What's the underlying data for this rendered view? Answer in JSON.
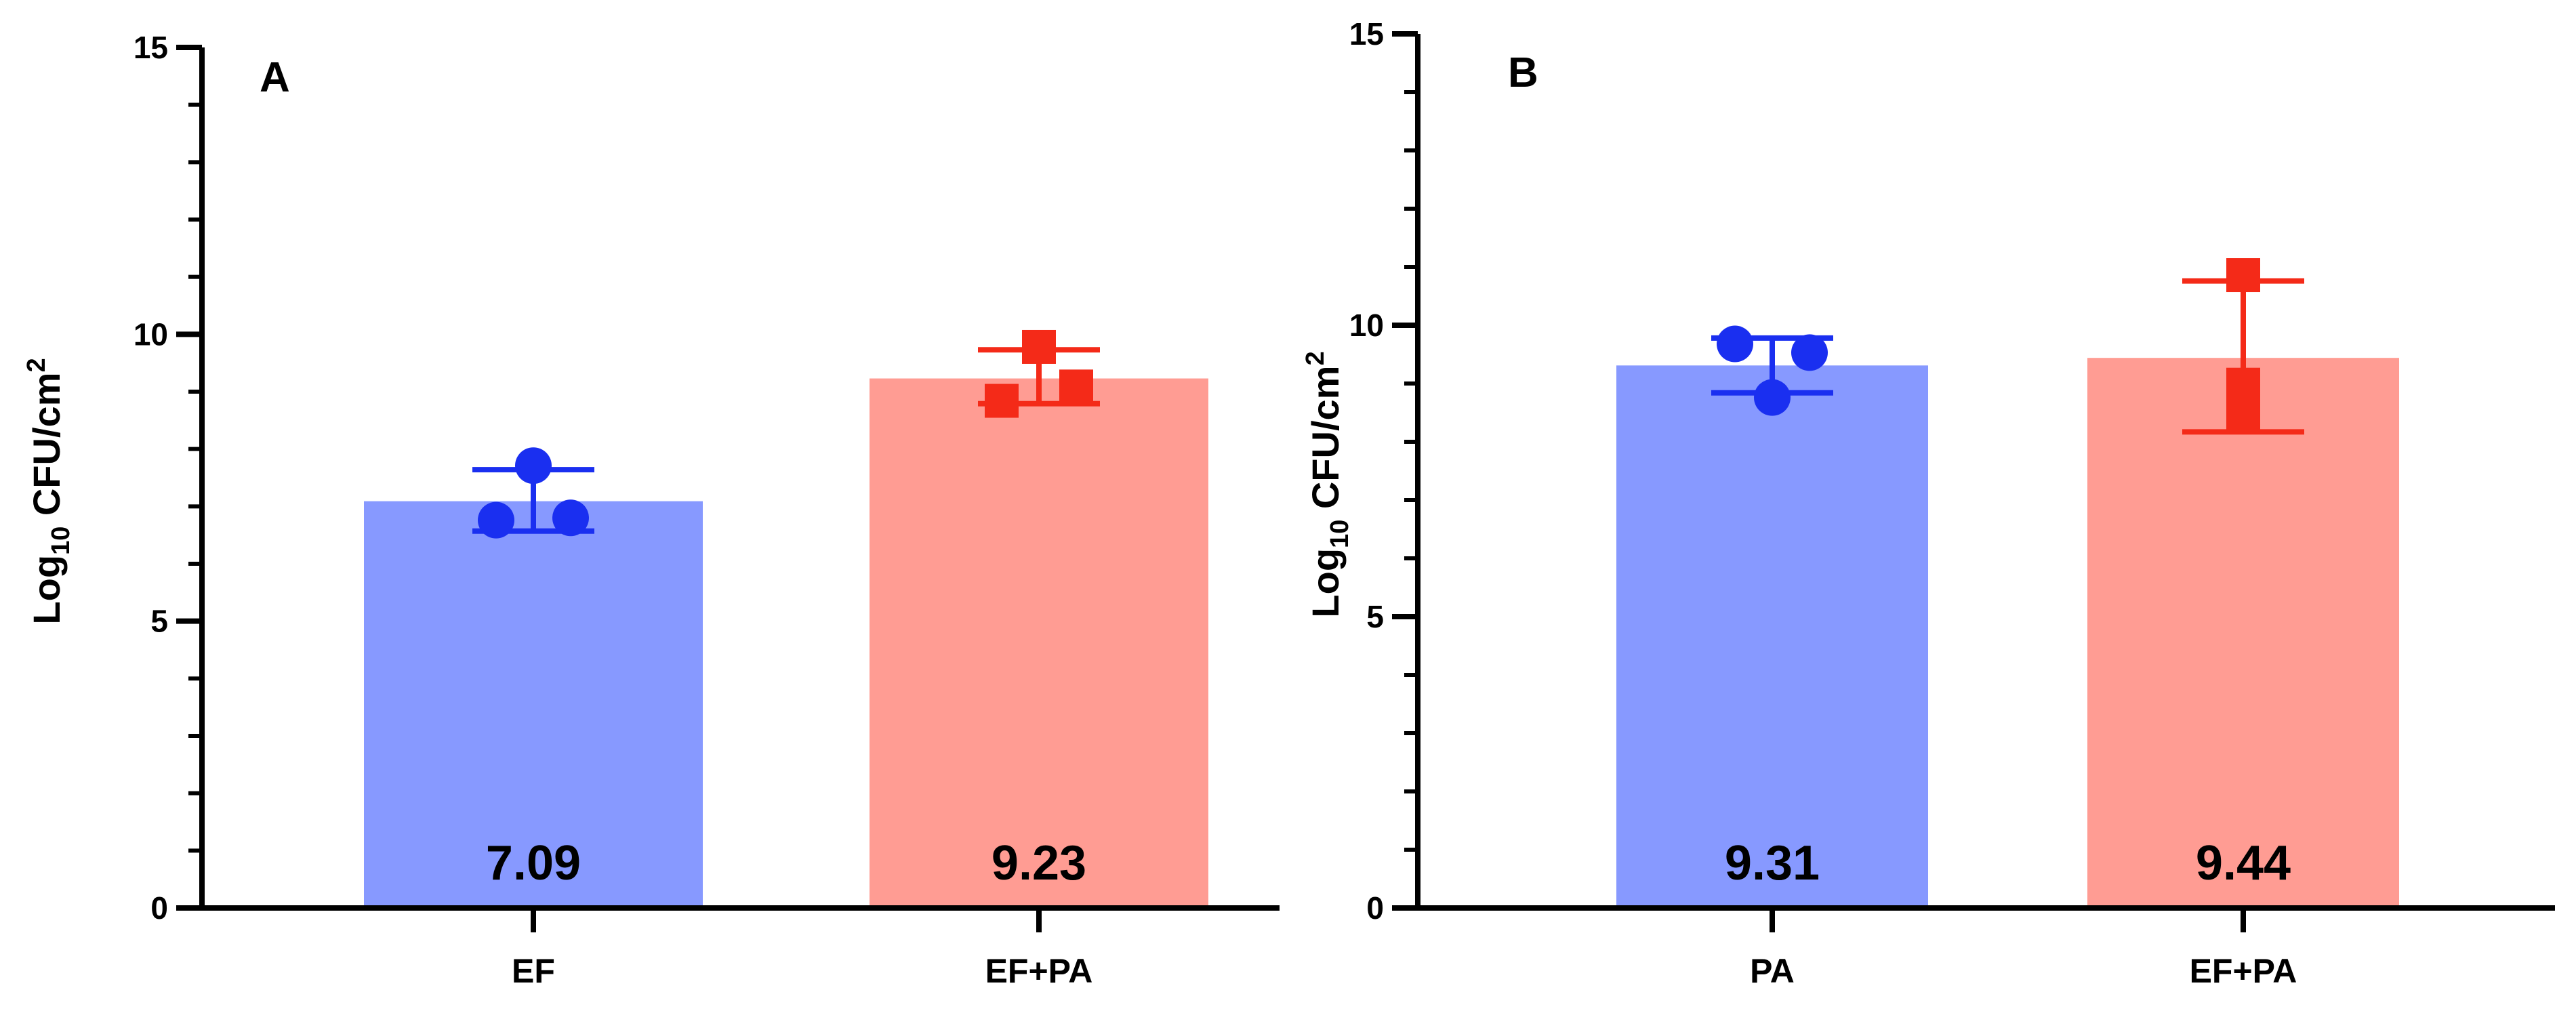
{
  "chart_data": [
    {
      "type": "bar",
      "panel_label": "A",
      "categories": [
        "EF",
        "EF+PA"
      ],
      "values": [
        7.09,
        9.23
      ],
      "value_labels": [
        "7.09",
        "9.23"
      ],
      "error_bars": [
        {
          "low": 6.57,
          "high": 7.64
        },
        {
          "low": 8.79,
          "high": 9.73
        }
      ],
      "points": [
        [
          6.76,
          7.71,
          6.8
        ],
        [
          8.84,
          9.78,
          9.09
        ]
      ],
      "marker_shapes": [
        "circle",
        "square"
      ],
      "bar_colors": [
        "#8799FF",
        "#FF9C93"
      ],
      "marker_colors": [
        "#1A2FF0",
        "#F42A18"
      ],
      "ylabel_main": "Log",
      "ylabel_sub": "10",
      "ylabel_rest": " CFU/cm",
      "ylabel_sup": "2",
      "xlabel": "",
      "ylim": [
        0,
        15
      ],
      "yticks": [
        0,
        5,
        10,
        15
      ],
      "ytick_labels": [
        "0",
        "5",
        "10",
        "15"
      ],
      "minor_tick_step": 1
    },
    {
      "type": "bar",
      "panel_label": "B",
      "categories": [
        "PA",
        "EF+PA"
      ],
      "values": [
        9.31,
        9.44
      ],
      "value_labels": [
        "9.31",
        "9.44"
      ],
      "error_bars": [
        {
          "low": 8.84,
          "high": 9.78
        },
        {
          "low": 8.17,
          "high": 10.76
        }
      ],
      "points": [
        [
          9.68,
          8.76,
          9.53
        ],
        [
          10.86,
          8.98,
          8.45
        ]
      ],
      "marker_shapes": [
        "circle",
        "square"
      ],
      "bar_colors": [
        "#8799FF",
        "#FF9C93"
      ],
      "marker_colors": [
        "#1A2FF0",
        "#F42A18"
      ],
      "ylabel_main": "Log",
      "ylabel_sub": "10",
      "ylabel_rest": " CFU/cm",
      "ylabel_sup": "2",
      "xlabel": "",
      "ylim": [
        0,
        15
      ],
      "yticks": [
        0,
        5,
        10,
        15
      ],
      "ytick_labels": [
        "0",
        "5",
        "10",
        "15"
      ],
      "minor_tick_step": 1
    }
  ]
}
